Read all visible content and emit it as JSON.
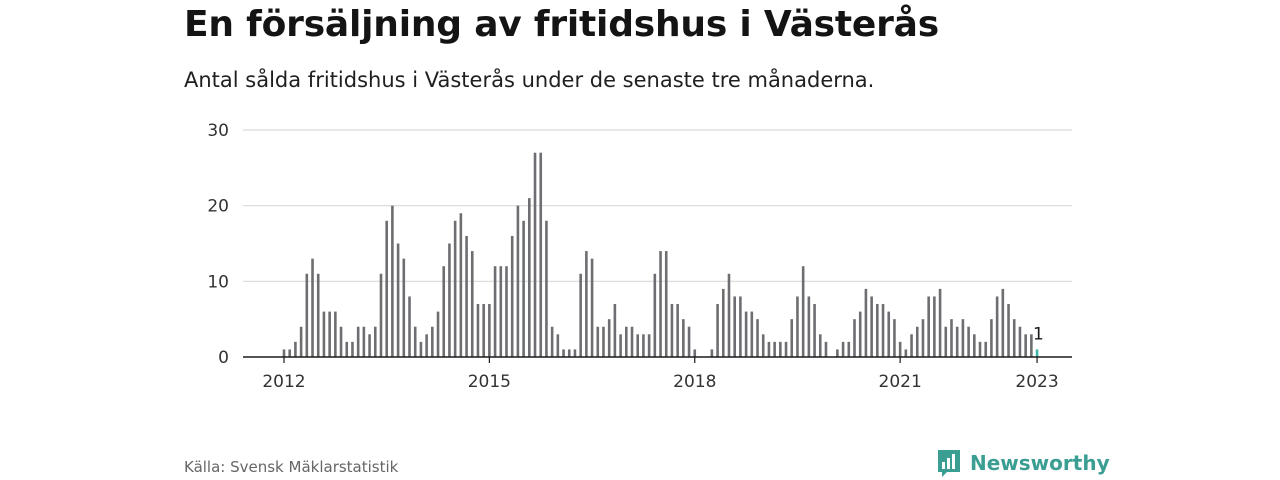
{
  "header": {
    "title": "En försäljning av fritidshus i Västerås",
    "subtitle": "Antal sålda fritidshus i Västerås under de senaste tre månaderna."
  },
  "footer": {
    "source": "Källa: Svensk Mäklarstatistik",
    "brand": "Newsworthy",
    "brand_icon": "newsworthy-logo-icon"
  },
  "colors": {
    "bar": "#6e6e72",
    "highlight": "#3fb6a8",
    "grid": "#d9d9d9",
    "axis": "#1a1a1a",
    "brand": "#3a9e93"
  },
  "chart_data": {
    "type": "bar",
    "title": "En försäljning av fritidshus i Västerås",
    "subtitle": "Antal sålda fritidshus i Västerås under de senaste tre månaderna.",
    "xlabel": "",
    "ylabel": "",
    "ylim": [
      0,
      30
    ],
    "yticks": [
      0,
      10,
      20,
      30
    ],
    "xticks": [
      {
        "label": "2012",
        "index": 0
      },
      {
        "label": "2015",
        "index": 36
      },
      {
        "label": "2018",
        "index": 72
      },
      {
        "label": "2021",
        "index": 108
      },
      {
        "label": "2023",
        "index": 132
      }
    ],
    "x_start": "2012-01",
    "x_end": "2023-01",
    "grid": true,
    "values": [
      1,
      1,
      2,
      4,
      11,
      13,
      11,
      6,
      6,
      6,
      4,
      2,
      2,
      4,
      4,
      3,
      4,
      11,
      18,
      20,
      15,
      13,
      8,
      4,
      2,
      3,
      4,
      6,
      12,
      15,
      18,
      19,
      16,
      14,
      7,
      7,
      7,
      12,
      12,
      12,
      16,
      20,
      18,
      21,
      27,
      27,
      18,
      4,
      3,
      1,
      1,
      1,
      11,
      14,
      13,
      4,
      4,
      5,
      7,
      3,
      4,
      4,
      3,
      3,
      3,
      11,
      14,
      14,
      7,
      7,
      5,
      4,
      1,
      0,
      0,
      1,
      7,
      9,
      11,
      8,
      8,
      6,
      6,
      5,
      3,
      2,
      2,
      2,
      2,
      5,
      8,
      12,
      8,
      7,
      3,
      2,
      0,
      1,
      2,
      2,
      5,
      6,
      9,
      8,
      7,
      7,
      6,
      5,
      2,
      1,
      3,
      4,
      5,
      8,
      8,
      9,
      4,
      5,
      4,
      5,
      4,
      3,
      2,
      2,
      5,
      8,
      9,
      7,
      5,
      4,
      3,
      3,
      1
    ],
    "highlight_last": true,
    "last_label": "1"
  }
}
